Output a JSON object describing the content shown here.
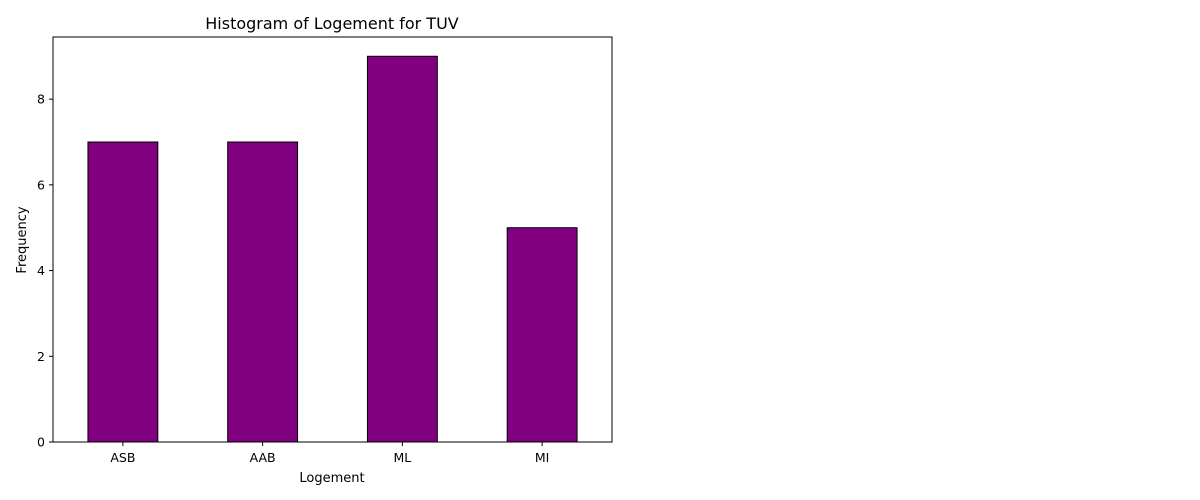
{
  "chart_data": {
    "type": "bar",
    "title": "Histogram of Logement for TUV",
    "xlabel": "Logement",
    "ylabel": "Frequency",
    "categories": [
      "ASB",
      "AAB",
      "ML",
      "MI"
    ],
    "values": [
      7,
      7,
      9,
      5
    ],
    "ylim": [
      0,
      9.45
    ],
    "yticks": [
      0,
      2,
      4,
      6,
      8
    ],
    "grid": false,
    "legend": "none",
    "bar_color": "#800080",
    "edge_color": "#000000"
  }
}
